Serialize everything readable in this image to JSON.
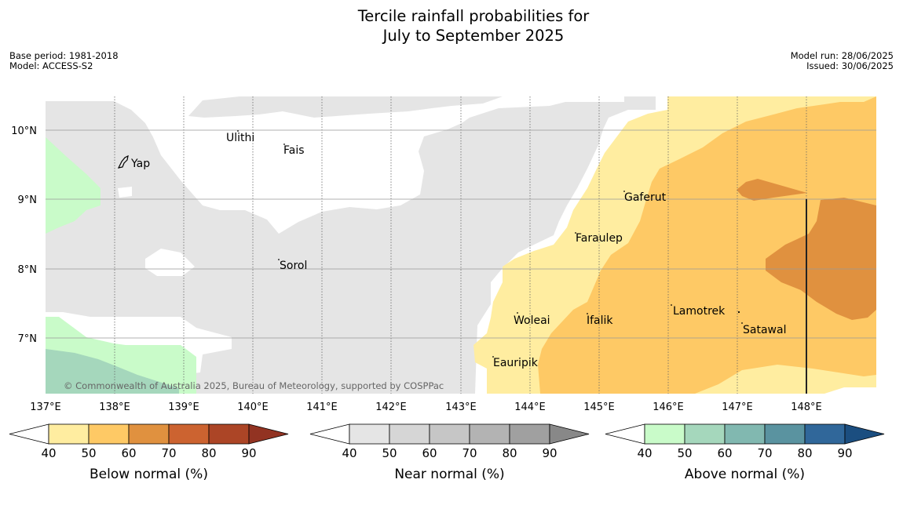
{
  "title_line1": "Tercile rainfall probabilities for",
  "title_line2": "July to September 2025",
  "base_period": "Base period: 1981-2018",
  "model": "Model: ACCESS-S2",
  "model_run": "Model run: 28/06/2025",
  "issued": "Issued: 30/06/2025",
  "copyright": "© Commonwealth of Australia 2025, Bureau of Meteorology, supported by COSPPac",
  "lon_labels": [
    "137°E",
    "138°E",
    "139°E",
    "140°E",
    "141°E",
    "142°E",
    "143°E",
    "144°E",
    "145°E",
    "146°E",
    "147°E",
    "148°E"
  ],
  "lat_labels": [
    "10°N",
    "9°N",
    "8°N",
    "7°N"
  ],
  "places": [
    {
      "name": "Yap"
    },
    {
      "name": "Ulithi"
    },
    {
      "name": "Fais"
    },
    {
      "name": "Gaferut"
    },
    {
      "name": "Faraulep"
    },
    {
      "name": "Sorol"
    },
    {
      "name": "Woleai"
    },
    {
      "name": "Ifalik"
    },
    {
      "name": "Lamotrek"
    },
    {
      "name": "Satawal"
    },
    {
      "name": "Eauripik"
    }
  ],
  "colorbars": [
    {
      "label": "Below normal (%)",
      "ticks": [
        "40",
        "50",
        "60",
        "70",
        "80",
        "90"
      ],
      "colors": [
        "#ffeda0",
        "#fec965",
        "#e0913f",
        "#cc6330",
        "#ac4526",
        "#923322"
      ]
    },
    {
      "label": "Near normal (%)",
      "ticks": [
        "40",
        "50",
        "60",
        "70",
        "80",
        "90"
      ],
      "colors": [
        "#e5e5e5",
        "#d6d6d6",
        "#c6c6c6",
        "#b3b3b3",
        "#a0a0a0",
        "#888888"
      ]
    },
    {
      "label": "Above normal (%)",
      "ticks": [
        "40",
        "50",
        "60",
        "70",
        "80",
        "90"
      ],
      "colors": [
        "#c9fbc9",
        "#a5d7bc",
        "#81b8b0",
        "#5a93a0",
        "#30679a",
        "#1b4e80"
      ]
    }
  ],
  "colors": {
    "near_normal_40": "#e5e5e5",
    "below_normal_40": "#ffeda0",
    "below_normal_50": "#fec965",
    "below_normal_60": "#e0913f",
    "above_normal_40": "#c9fbc9",
    "above_normal_50": "#a5d7bc"
  }
}
